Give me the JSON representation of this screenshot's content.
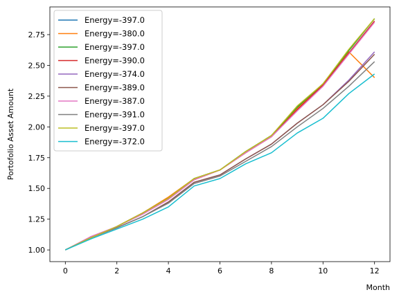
{
  "chart_data": {
    "type": "line",
    "title": "",
    "xlabel": "Month",
    "ylabel": "Portofolio Asset Amount",
    "xlim": [
      -0.6,
      12.6
    ],
    "ylim": [
      0.905,
      2.975
    ],
    "xticks": [
      0,
      2,
      4,
      6,
      8,
      10,
      12
    ],
    "xtick_labels": [
      "0",
      "2",
      "4",
      "6",
      "8",
      "10",
      "12"
    ],
    "yticks": [
      1.0,
      1.25,
      1.5,
      1.75,
      2.0,
      2.25,
      2.5,
      2.75
    ],
    "ytick_labels": [
      "1.00",
      "1.25",
      "1.50",
      "1.75",
      "2.00",
      "2.25",
      "2.50",
      "2.75"
    ],
    "grid": false,
    "legend_position": "top-left",
    "x": [
      0,
      1,
      2,
      3,
      4,
      5,
      6,
      7,
      8,
      9,
      10,
      11,
      12
    ],
    "series": [
      {
        "name": "Energy=-397.0",
        "color": "#1f77b4",
        "values": [
          1.0,
          1.1,
          1.19,
          1.3,
          1.42,
          1.58,
          1.65,
          1.8,
          1.93,
          2.16,
          2.35,
          2.62,
          2.88
        ]
      },
      {
        "name": "Energy=-380.0",
        "color": "#ff7f0e",
        "values": [
          1.0,
          1.1,
          1.19,
          1.3,
          1.43,
          1.58,
          1.65,
          1.79,
          1.93,
          2.15,
          2.34,
          2.61,
          2.4
        ]
      },
      {
        "name": "Energy=-397.0",
        "color": "#2ca02c",
        "values": [
          1.0,
          1.1,
          1.19,
          1.3,
          1.42,
          1.58,
          1.65,
          1.8,
          1.93,
          2.16,
          2.35,
          2.62,
          2.88
        ]
      },
      {
        "name": "Energy=-390.0",
        "color": "#d62728",
        "values": [
          1.0,
          1.1,
          1.19,
          1.3,
          1.42,
          1.57,
          1.65,
          1.79,
          1.92,
          2.14,
          2.34,
          2.6,
          2.86
        ]
      },
      {
        "name": "Energy=-374.0",
        "color": "#9467bd",
        "values": [
          1.0,
          1.1,
          1.18,
          1.27,
          1.39,
          1.55,
          1.61,
          1.74,
          1.86,
          2.03,
          2.18,
          2.38,
          2.61
        ]
      },
      {
        "name": "Energy=-389.0",
        "color": "#8c564b",
        "values": [
          1.0,
          1.1,
          1.18,
          1.27,
          1.39,
          1.55,
          1.61,
          1.74,
          1.86,
          2.03,
          2.18,
          2.37,
          2.59
        ]
      },
      {
        "name": "Energy=-387.0",
        "color": "#e377c2",
        "values": [
          1.0,
          1.11,
          1.19,
          1.29,
          1.41,
          1.57,
          1.65,
          1.79,
          1.92,
          2.13,
          2.33,
          2.59,
          2.85
        ]
      },
      {
        "name": "Energy=-391.0",
        "color": "#7f7f7f",
        "values": [
          1.0,
          1.1,
          1.18,
          1.27,
          1.38,
          1.54,
          1.6,
          1.72,
          1.84,
          2.0,
          2.15,
          2.33,
          2.53
        ]
      },
      {
        "name": "Energy=-397.0",
        "color": "#bcbd22",
        "values": [
          1.0,
          1.1,
          1.19,
          1.3,
          1.42,
          1.58,
          1.65,
          1.8,
          1.93,
          2.17,
          2.35,
          2.63,
          2.88
        ]
      },
      {
        "name": "Energy=-372.0",
        "color": "#17becf",
        "values": [
          1.0,
          1.09,
          1.17,
          1.25,
          1.35,
          1.52,
          1.58,
          1.7,
          1.79,
          1.95,
          2.07,
          2.27,
          2.43
        ]
      }
    ]
  }
}
